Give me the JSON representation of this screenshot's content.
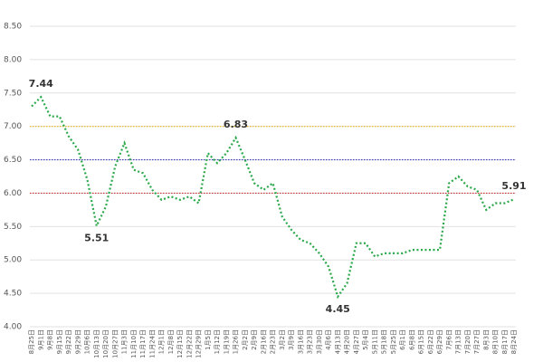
{
  "chart_data": {
    "type": "line",
    "categories": [
      "8月25日",
      "9月1日",
      "9月8日",
      "9月15日",
      "9月22日",
      "9月29日",
      "10月6日",
      "10月13日",
      "10月20日",
      "10月27日",
      "11月3日",
      "11月10日",
      "11月17日",
      "11月24日",
      "12月1日",
      "12月8日",
      "12月15日",
      "12月22日",
      "12月29日",
      "1月5日",
      "1月12日",
      "1月19日",
      "1月26日",
      "2月2日",
      "2月9日",
      "2月16日",
      "2月23日",
      "3月2日",
      "3月9日",
      "3月16日",
      "3月23日",
      "3月30日",
      "4月6日",
      "4月13日",
      "4月20日",
      "4月27日",
      "5月4日",
      "5月11日",
      "5月18日",
      "5月25日",
      "6月1日",
      "6月8日",
      "6月15日",
      "6月22日",
      "6月29日",
      "7月6日",
      "7月13日",
      "7月20日",
      "7月27日",
      "8月3日",
      "8月10日",
      "8月17日",
      "8月24日"
    ],
    "series": [
      {
        "color": "#2aa84a",
        "values": [
          7.3,
          7.44,
          7.15,
          7.15,
          6.85,
          6.65,
          6.2,
          5.51,
          5.8,
          6.4,
          6.75,
          6.35,
          6.3,
          6.05,
          5.9,
          5.95,
          5.9,
          5.95,
          5.85,
          6.6,
          6.45,
          6.6,
          6.83,
          6.5,
          6.15,
          6.05,
          6.15,
          5.65,
          5.45,
          5.3,
          5.25,
          5.1,
          4.9,
          4.45,
          4.65,
          5.25,
          5.25,
          5.05,
          5.1,
          5.1,
          5.1,
          5.15,
          5.15,
          5.15,
          5.15,
          6.15,
          6.25,
          6.1,
          6.05,
          5.75,
          5.85,
          5.85,
          5.91
        ],
        "value_labels": [
          null,
          "7.44",
          null,
          null,
          null,
          null,
          null,
          "5.51",
          null,
          null,
          null,
          null,
          null,
          null,
          null,
          null,
          null,
          null,
          null,
          null,
          null,
          null,
          "6.83",
          null,
          null,
          null,
          null,
          null,
          null,
          null,
          null,
          null,
          null,
          "4.45",
          null,
          null,
          null,
          null,
          null,
          null,
          null,
          null,
          null,
          null,
          null,
          null,
          null,
          null,
          null,
          null,
          null,
          null,
          "5.91"
        ]
      }
    ],
    "reference_lines": [
      {
        "value": 7,
        "color": "#e8b820"
      },
      {
        "value": 6.5,
        "color": "#3a3ab8"
      },
      {
        "value": 6,
        "color": "#cc3030"
      }
    ],
    "ylim": [
      4,
      8.5
    ],
    "yticks": [
      {
        "value": 4,
        "label": "4.00"
      },
      {
        "value": 4.5,
        "label": "4.50"
      },
      {
        "value": 5,
        "label": "5.00"
      },
      {
        "value": 5.5,
        "label": "5.50"
      },
      {
        "value": 6,
        "label": "6.00"
      },
      {
        "value": 6.5,
        "label": "6.50"
      },
      {
        "value": 7,
        "label": "7.00"
      },
      {
        "value": 7.5,
        "label": "7.50"
      },
      {
        "value": 8,
        "label": "8.00"
      },
      {
        "value": 8.5,
        "label": "8.50"
      }
    ],
    "grid": true
  }
}
